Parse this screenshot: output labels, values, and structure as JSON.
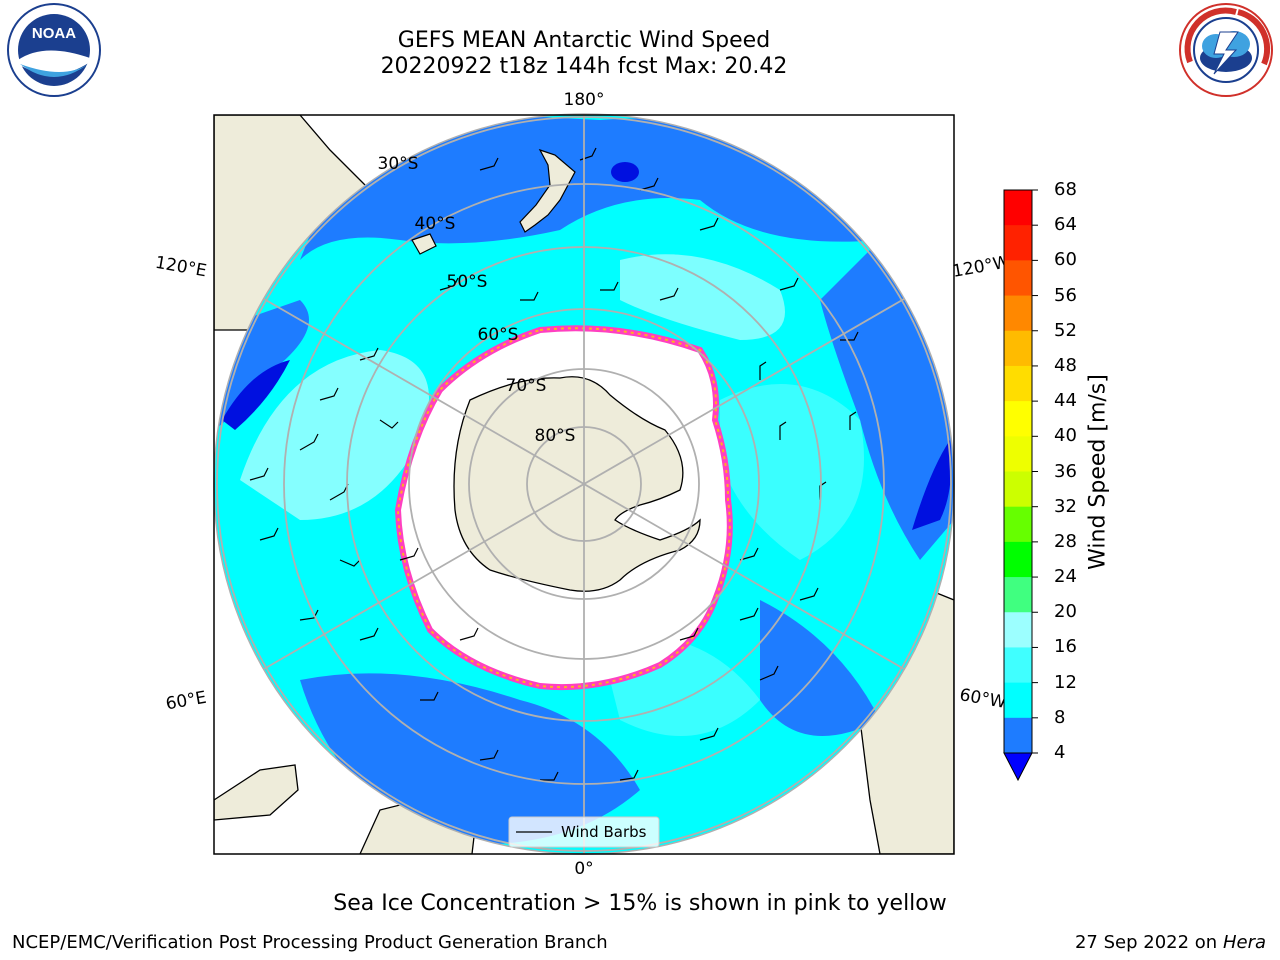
{
  "header": {
    "title": "GEFS MEAN Antarctic Wind Speed",
    "subtitle": "20220922 t18z 144h fcst   Max: 20.42"
  },
  "map": {
    "projection": "south-polar-stereographic",
    "meridian_labels": [
      "180°",
      "120°E",
      "120°W",
      "60°E",
      "60°W",
      "0°"
    ],
    "latitude_labels": [
      "30°S",
      "40°S",
      "50°S",
      "60°S",
      "70°S",
      "80°S"
    ],
    "legend_label": "Wind Barbs",
    "colors": {
      "land": "#eeecda",
      "ice_interior": "#ffffff",
      "ice_edge": "#ff40c0",
      "wind_4_8": "#1e7cff",
      "wind_8_12": "#00ffff",
      "wind_12_16": "#40ffff",
      "wind_16_20": "#9cffff",
      "wind_lt_4": "#0010e0"
    }
  },
  "colorbar": {
    "label": "Wind Speed [m/s]",
    "ticks": [
      "4",
      "8",
      "12",
      "16",
      "20",
      "24",
      "28",
      "32",
      "36",
      "40",
      "44",
      "48",
      "52",
      "56",
      "60",
      "64",
      "68"
    ],
    "colors": [
      "#0000ff",
      "#1e7cff",
      "#00ffff",
      "#40ffff",
      "#9cffff",
      "#40ff80",
      "#00ff00",
      "#66ff00",
      "#ccff00",
      "#eeff00",
      "#ffff00",
      "#ffdd00",
      "#ffbb00",
      "#ff8800",
      "#ff5500",
      "#ff2200",
      "#ff0000"
    ]
  },
  "footer": {
    "note": "Sea Ice Concentration > 15% is shown in pink to yellow",
    "credit_left": "NCEP/EMC/Verification Post Processing Product Generation Branch",
    "credit_date": "27 Sep 2022 on",
    "credit_host": "Hera"
  },
  "logos": {
    "left": {
      "name": "NOAA",
      "text": "NOAA"
    },
    "right": {
      "name": "National Weather Service",
      "text": "NATIONAL WEATHER SERVICE"
    }
  }
}
